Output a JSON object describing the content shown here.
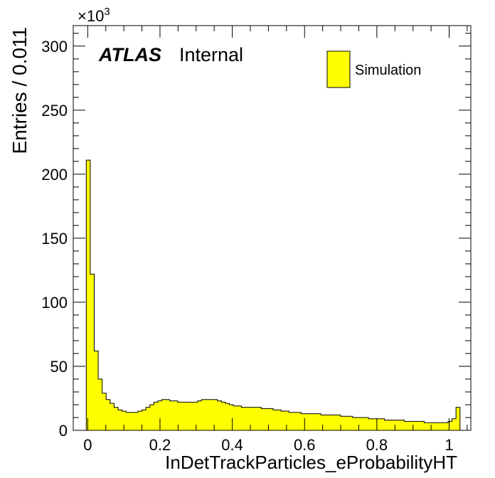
{
  "chart_data": {
    "type": "bar",
    "style": "histogram",
    "xlabel": "InDetTrackParticles_eProbabilityHT",
    "ylabel": "Entries / 0.011",
    "y_multiplier_label": "×10",
    "y_multiplier_exponent": "3",
    "xlim": [
      -0.04,
      1.06
    ],
    "ylim": [
      0,
      316
    ],
    "x_ticks": [
      0,
      0.2,
      0.4,
      0.6,
      0.8,
      1
    ],
    "x_tick_labels": [
      "0",
      "0.2",
      "0.4",
      "0.6",
      "0.8",
      "1"
    ],
    "y_ticks": [
      0,
      50,
      100,
      150,
      200,
      250,
      300
    ],
    "y_tick_labels": [
      "0",
      "50",
      "100",
      "150",
      "200",
      "250",
      "300"
    ],
    "bin_width": 0.011,
    "bin_start": -0.004,
    "values": [
      211,
      122,
      62,
      40,
      29,
      24,
      21,
      18,
      16,
      15,
      14,
      14,
      14,
      15,
      16,
      18,
      20,
      22,
      23,
      24,
      24,
      23,
      23,
      22,
      22,
      22,
      22,
      22,
      23,
      24,
      24,
      24,
      24,
      23,
      22,
      21,
      20,
      19,
      19,
      18,
      18,
      18,
      18,
      18,
      17,
      17,
      17,
      16,
      16,
      15,
      15,
      14,
      14,
      14,
      13,
      13,
      13,
      13,
      13,
      12,
      12,
      12,
      12,
      12,
      11,
      11,
      11,
      10,
      10,
      10,
      10,
      9,
      9,
      9,
      9,
      8,
      8,
      8,
      8,
      8,
      7,
      7,
      7,
      7,
      7,
      6,
      6,
      6,
      6,
      6,
      6,
      7,
      9,
      18
    ],
    "series": [
      {
        "name": "Simulation",
        "color": "#ffff00"
      }
    ],
    "legend_position": "top-right",
    "grid": false,
    "fill_color": "#ffff00",
    "line_color": "#000000"
  },
  "annotations": {
    "atlas": "ATLAS",
    "internal": "Internal"
  }
}
